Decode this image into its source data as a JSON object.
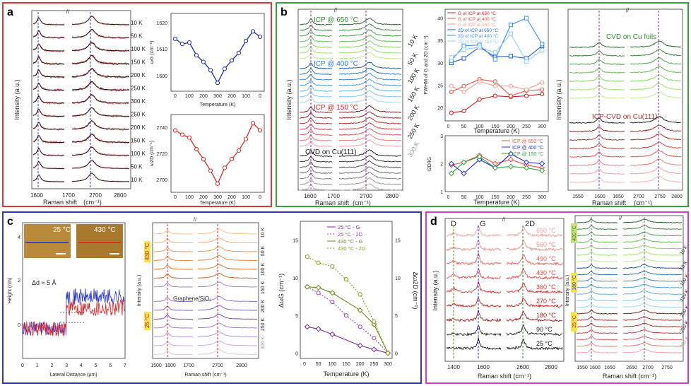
{
  "panels": {
    "a": {
      "label": "a",
      "border_color": "#d9383a",
      "raman": {
        "ylabel": "Intensity (a.u.)",
        "xlabel": "Raman shift",
        "xunit": "(cm⁻¹)",
        "ticks": [
          "1600",
          "1700",
          "2700",
          "2800"
        ],
        "temps": [
          "10 K",
          "50 K",
          "100 K",
          "150 K",
          "200 K",
          "250 K",
          "300 K",
          "250 K",
          "200 K",
          "150 K",
          "100 K",
          "50 K",
          "10 K"
        ]
      },
      "wg": {
        "ylabel": "ωG (cm⁻¹)",
        "xlabel": "Temperature (K)",
        "yticks": [
          "1620",
          "1610",
          "1600"
        ],
        "xticks": [
          "0",
          "100",
          "200",
          "300",
          "200",
          "100",
          "0"
        ]
      },
      "w2d": {
        "ylabel": "ω2D (cm⁻¹)",
        "xlabel": "Temperature (K)",
        "yticks": [
          "2740",
          "2720",
          "2700"
        ],
        "xticks": [
          "0",
          "100",
          "200",
          "300",
          "200",
          "100",
          "0"
        ]
      }
    },
    "b": {
      "label": "b",
      "border_color": "#35a13a",
      "raman": {
        "ylabel": "Intensity (a.u.)",
        "xlabel": "Raman shift",
        "xunit": "(cm⁻¹)",
        "ticks": [
          "1600",
          "1700",
          "2700",
          "2800"
        ],
        "groups": [
          "ICP @ 650 °C",
          "ICP @ 400 °C",
          "ICP @ 150 °C",
          "CVD on Cu(111)"
        ],
        "temps": [
          "10 K",
          "50 K",
          "100 K",
          "150 K",
          "200 K",
          "250 K",
          "300 K"
        ]
      },
      "fwhm": {
        "ylabel": "FWHM of G and 2D (cm⁻¹)",
        "xlabel": "Temperature (K)",
        "yticks": [
          "40",
          "35",
          "30",
          "25",
          "20"
        ],
        "xticks": [
          "0",
          "50",
          "100",
          "150",
          "200",
          "250",
          "300"
        ],
        "legend": [
          "G of ICP at 650 °C",
          "G of ICP at 400 °C",
          "G of ICP at 150 °C",
          "2D of ICP at 650 °C",
          "2D of ICP at 400 °C",
          "2D of ICP at 150 °C"
        ]
      },
      "ratio": {
        "ylabel": "I2D/IG",
        "xlabel": "Temperature (K)",
        "yticks": [
          "3",
          "2",
          "1"
        ],
        "xticks": [
          "0",
          "50",
          "100",
          "150",
          "200",
          "250",
          "300"
        ],
        "legend": [
          "ICP @ 650 °C",
          "ICP @ 400 °C",
          "ICP @ 150 °C"
        ]
      },
      "right": {
        "ylabel": "Intensity (a.u.)",
        "xlabel": "Raman shift",
        "xunit": "(cm⁻¹)",
        "ticks": [
          "1550",
          "1600",
          "1650",
          "2700",
          "2750",
          "2800"
        ],
        "groups": [
          "CVD on Cu foils",
          "ICP-CVD on Cu(111)"
        ]
      }
    },
    "c": {
      "label": "c",
      "border_color": "#2f36b8",
      "afm": {
        "ylabel": "Height (nm)",
        "xlabel": "Lateral Distance (μm)",
        "yticks": [
          "4",
          "2",
          "0"
        ],
        "xticks": [
          "0",
          "1",
          "2",
          "3",
          "4",
          "5",
          "6",
          "7"
        ],
        "step_note": "Δd ≈ 5 Å",
        "inset_left": "25 °C",
        "inset_right": "430 °C"
      },
      "raman": {
        "ylabel": "Intensity (a.u.)",
        "xlabel": "Raman shift (cm⁻¹)",
        "ticks": [
          "1500",
          "1600",
          "1700",
          "2700",
          "2800"
        ],
        "sample": "Graphene/SiO₂",
        "hot": "430 °C",
        "cold": "25 °C",
        "temps": [
          "10 K",
          "50 K",
          "100 K",
          "150 K",
          "200 K",
          "250 K",
          "300 K"
        ]
      },
      "shift": {
        "ylabel": "ΔωG (cm⁻¹)",
        "y2label": "Δω2D (cm⁻¹)",
        "xlabel": "Temperature (K)",
        "yticks": [
          "0",
          "5",
          "10",
          "15"
        ],
        "y2ticks": [
          "0",
          "5",
          "10",
          "15"
        ],
        "xticks": [
          "0",
          "50",
          "100",
          "150",
          "200",
          "250",
          "300"
        ],
        "legend": [
          "25 °C - G",
          "25 °C - 2D",
          "430 °C - G",
          "430 °C - 2D"
        ]
      }
    },
    "d": {
      "label": "d",
      "border_color": "#d93bc0",
      "raman": {
        "ylabel": "Intensity (a.u.)",
        "xlabel": "Raman shift (cm⁻¹)",
        "ticks": [
          "1400",
          "1600",
          "2600",
          "2800"
        ],
        "peaks": [
          "D",
          "G",
          "2D"
        ],
        "temps": [
          "650 °C",
          "560 °C",
          "490 °C",
          "430 °C",
          "360 °C",
          "270 °C",
          "180 °C",
          "90 °C",
          "25 °C"
        ]
      },
      "right": {
        "ylabel": "Intensity (a.u.)",
        "xlabel": "Raman shift (cm⁻¹)",
        "ticks": [
          "1550",
          "1600",
          "1650",
          "2650",
          "2700",
          "2750"
        ],
        "groups": [
          "430 °C",
          "180 °C",
          "25 °C"
        ],
        "temps": [
          "10 K",
          "50 K",
          "100 K",
          "150 K",
          "200 K",
          "250 K",
          "300 K"
        ]
      }
    }
  },
  "chart_data": [
    {
      "id": "a-wG",
      "type": "line",
      "title": "",
      "xlabel": "Temperature (K)",
      "ylabel": "ωG (cm⁻¹)",
      "x_categories": [
        "10",
        "50",
        "100",
        "150",
        "200",
        "250",
        "300",
        "250",
        "200",
        "150",
        "100",
        "50",
        "10"
      ],
      "series": [
        {
          "name": "ωG",
          "values": [
            1613.5,
            1611.8,
            1612.3,
            1608.0,
            1605.8,
            1603.0,
            1598.8,
            1603.5,
            1606.3,
            1608.8,
            1612.8,
            1616.0,
            1614.2
          ]
        }
      ],
      "ylim": [
        1596,
        1622
      ],
      "color": "#1f2db3"
    },
    {
      "id": "a-w2D",
      "type": "line",
      "title": "",
      "xlabel": "Temperature (K)",
      "ylabel": "ω2D (cm⁻¹)",
      "x_categories": [
        "10",
        "50",
        "100",
        "150",
        "200",
        "250",
        "300",
        "250",
        "200",
        "150",
        "100",
        "50",
        "10"
      ],
      "series": [
        {
          "name": "ω2D",
          "values": [
            2737,
            2734,
            2732,
            2724,
            2717,
            2709,
            2700,
            2711,
            2717,
            2723,
            2731,
            2742,
            2737
          ]
        }
      ],
      "ylim": [
        2694,
        2748
      ],
      "color": "#d8292c"
    },
    {
      "id": "b-FWHM",
      "type": "line",
      "xlabel": "Temperature (K)",
      "ylabel": "FWHM of G and 2D (cm⁻¹)",
      "x": [
        10,
        50,
        100,
        150,
        200,
        250,
        300
      ],
      "ylim": [
        17,
        42
      ],
      "series": [
        {
          "name": "G of ICP at 650 °C",
          "values": [
            18.8,
            19.2,
            21.8,
            22.6,
            22.4,
            22.6,
            23.0
          ],
          "color": "#c81d1d",
          "marker": "circle"
        },
        {
          "name": "G of ICP at 400 °C",
          "values": [
            23.5,
            24.8,
            26.3,
            25.8,
            22.6,
            23.8,
            24.0
          ],
          "color": "#e0503f",
          "marker": "circle"
        },
        {
          "name": "G of ICP at 150 °C",
          "values": [
            24.8,
            23.5,
            25.8,
            24.8,
            24.8,
            24.0,
            25.6
          ],
          "color": "#f39a8f",
          "marker": "circle"
        },
        {
          "name": "2D of ICP at 650 °C",
          "values": [
            30.0,
            31.0,
            33.5,
            31.3,
            31.5,
            31.0,
            33.8
          ],
          "color": "#1b5fd6",
          "marker": "square"
        },
        {
          "name": "2D of ICP at 400 °C",
          "values": [
            30.5,
            33.8,
            34.0,
            30.8,
            38.5,
            40.0,
            34.2
          ],
          "color": "#3d8ef0",
          "marker": "square"
        },
        {
          "name": "2D of ICP at 150 °C",
          "values": [
            31.2,
            33.0,
            33.5,
            32.3,
            36.5,
            30.3,
            32.8
          ],
          "color": "#8fd0f5",
          "marker": "square"
        }
      ]
    },
    {
      "id": "b-ratio",
      "type": "line",
      "xlabel": "Temperature (K)",
      "ylabel": "I2D/IG",
      "x": [
        10,
        50,
        100,
        150,
        200,
        250,
        300
      ],
      "ylim": [
        1,
        3
      ],
      "series": [
        {
          "name": "ICP @ 650 °C",
          "values": [
            1.95,
            2.05,
            2.3,
            2.0,
            2.15,
            1.95,
            1.85
          ],
          "color": "#e0503f",
          "marker": "diamond"
        },
        {
          "name": "ICP @ 400 °C",
          "values": [
            2.0,
            1.65,
            2.15,
            1.85,
            2.35,
            2.05,
            2.0
          ],
          "color": "#2230c8",
          "marker": "diamond"
        },
        {
          "name": "ICP @ 150 °C",
          "values": [
            1.65,
            2.05,
            2.25,
            1.85,
            1.9,
            1.85,
            1.75
          ],
          "color": "#35a13a",
          "marker": "diamond"
        }
      ]
    },
    {
      "id": "c-shift",
      "type": "line",
      "xlabel": "Temperature (K)",
      "ylabel": "ΔωG (cm⁻¹)",
      "y2label": "Δω2D (cm⁻¹)",
      "x": [
        10,
        50,
        100,
        150,
        200,
        250,
        300
      ],
      "ylim": [
        -0.7,
        17.5
      ],
      "series": [
        {
          "name": "25 °C - G",
          "x": [
            10,
            50,
            100,
            200,
            250,
            300
          ],
          "values": [
            3.5,
            3.2,
            2.5,
            1.0,
            0.5,
            0.0
          ],
          "color": "#7a2a9a",
          "marker": "diamond",
          "style": "solid"
        },
        {
          "name": "25 °C - 2D",
          "x": [
            10,
            50,
            100,
            150,
            200,
            250,
            300
          ],
          "values": [
            8.8,
            8.0,
            6.8,
            5.0,
            3.5,
            2.0,
            0.0
          ],
          "color": "#9b46b4",
          "marker": "circle",
          "style": "dotted"
        },
        {
          "name": "430 °C - G",
          "x": [
            10,
            50,
            100,
            200,
            250,
            300
          ],
          "values": [
            8.8,
            8.7,
            8.0,
            5.7,
            3.8,
            0.0
          ],
          "color": "#6b8a1f",
          "marker": "diamond",
          "style": "solid"
        },
        {
          "name": "430 °C - 2D",
          "x": [
            10,
            50,
            100,
            150,
            200,
            250,
            300
          ],
          "values": [
            12.8,
            12.0,
            11.5,
            9.8,
            7.8,
            4.2,
            0.0
          ],
          "color": "#8a9a1e",
          "marker": "circle",
          "style": "dotted"
        }
      ]
    }
  ]
}
